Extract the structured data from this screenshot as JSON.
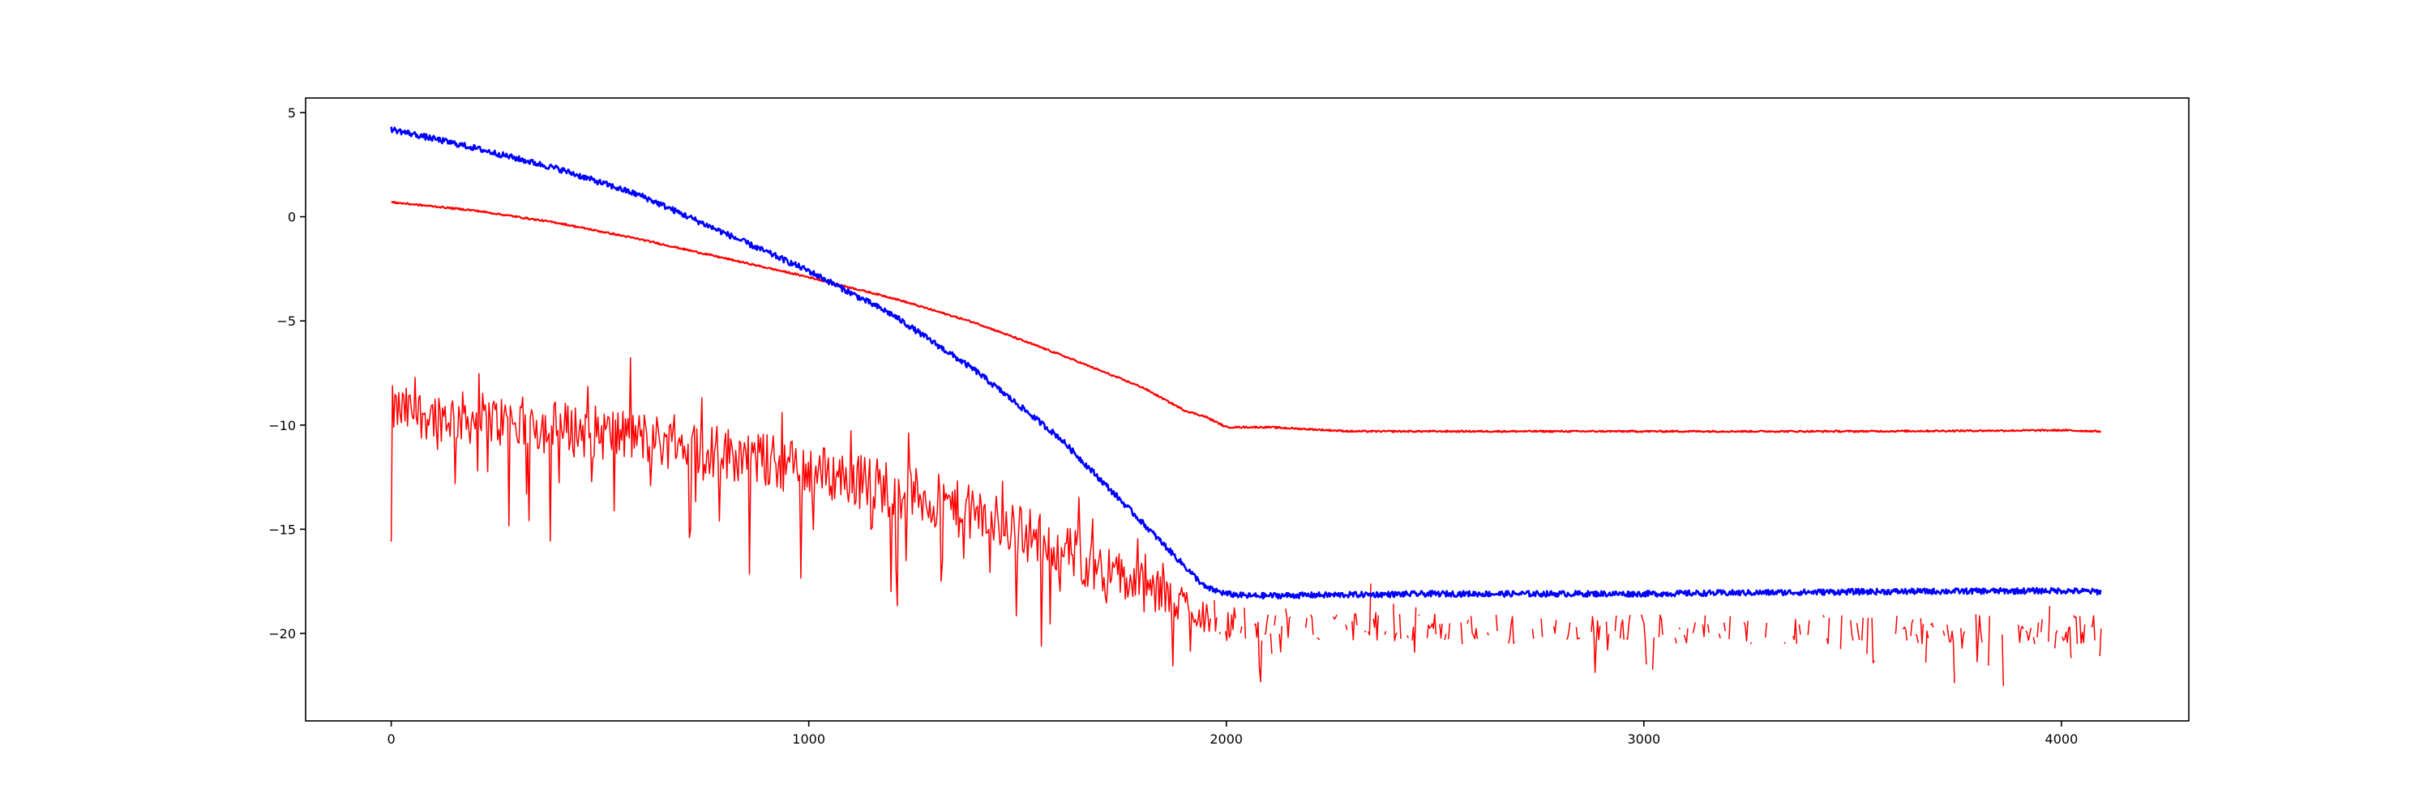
{
  "chart_data": {
    "type": "line",
    "title": "",
    "xlabel": "",
    "ylabel": "",
    "xlim": [
      -205,
      4305
    ],
    "ylim": [
      -24.2,
      5.7
    ],
    "grid": false,
    "x_ticks": [
      {
        "value": 0,
        "label": "0"
      },
      {
        "value": 1000,
        "label": "1000"
      },
      {
        "value": 2000,
        "label": "2000"
      },
      {
        "value": 3000,
        "label": "3000"
      },
      {
        "value": 4000,
        "label": "4000"
      }
    ],
    "y_ticks": [
      {
        "value": 5,
        "label": "5"
      },
      {
        "value": 0,
        "label": "0"
      },
      {
        "value": -5,
        "label": "−5"
      },
      {
        "value": -10,
        "label": "−10"
      },
      {
        "value": -15,
        "label": "−15"
      },
      {
        "value": -20,
        "label": "−20"
      }
    ],
    "series": [
      {
        "color": "#0000ff",
        "x": [
          0,
          200,
          400,
          600,
          800,
          1000,
          1200,
          1400,
          1600,
          1800,
          1950,
          2000,
          2050,
          2500,
          3000,
          3500,
          4000,
          4095
        ],
        "y": [
          4.2,
          3.3,
          2.3,
          1.0,
          -0.8,
          -2.6,
          -4.7,
          -7.4,
          -10.6,
          -14.7,
          -17.8,
          -18.1,
          -18.2,
          -18.1,
          -18.1,
          -18.0,
          -17.95,
          -18.0
        ],
        "noise": 0.14
      },
      {
        "color": "#ff0000",
        "x": [
          0,
          200,
          400,
          600,
          800,
          1000,
          1200,
          1400,
          1600,
          1800,
          1900,
          1950,
          2000,
          2100,
          2300,
          2600,
          3000,
          3500,
          4000,
          4095
        ],
        "y": [
          0.7,
          0.3,
          -0.3,
          -1.1,
          -2.0,
          -2.9,
          -3.9,
          -5.1,
          -6.6,
          -8.2,
          -9.3,
          -9.6,
          -10.1,
          -10.1,
          -10.3,
          -10.3,
          -10.3,
          -10.3,
          -10.25,
          -10.3
        ],
        "noise": 0.04
      },
      {
        "color": "#ff0000",
        "style": "spiky",
        "x": [
          0,
          300,
          600,
          900,
          1200,
          1500,
          1800,
          2000,
          2500,
          3000,
          3500,
          4095
        ],
        "y": [
          -9.3,
          -9.9,
          -10.6,
          -11.7,
          -13.0,
          -15.0,
          -17.8,
          -19.5,
          -19.8,
          -19.8,
          -19.8,
          -19.8
        ],
        "spread": [
          2.0,
          2.2,
          2.2,
          2.2,
          2.3,
          2.3,
          2.0,
          1.4,
          1.2,
          1.2,
          1.2,
          1.2
        ],
        "x_range": [
          0,
          4095
        ],
        "y_min": -22.9,
        "y_max": -6.7,
        "gap_from_x": 1960
      }
    ]
  }
}
